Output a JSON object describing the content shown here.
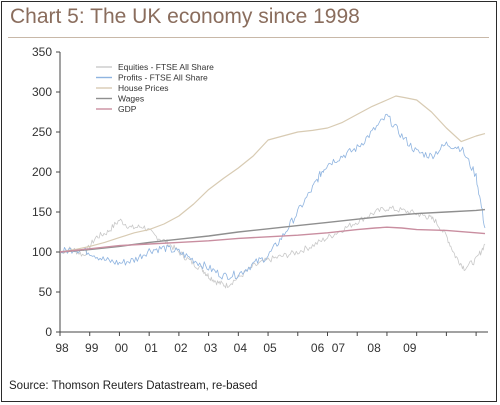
{
  "chart_data": {
    "type": "line",
    "title": "Chart 5: The UK economy since 1998",
    "source": "Source: Thomson Reuters Datastream, re-based",
    "xlabel": "",
    "ylabel": "",
    "ylim": [
      0,
      350
    ],
    "xlim": [
      1998.0,
      2012.4
    ],
    "y_ticks": [
      0,
      50,
      100,
      150,
      200,
      250,
      300,
      350
    ],
    "x_tick_labels": [
      {
        "label": "98",
        "x": 1998.0
      },
      {
        "label": "99",
        "x": 1999.0
      },
      {
        "label": "00",
        "x": 2000.0
      },
      {
        "label": "01",
        "x": 2001.0
      },
      {
        "label": "02",
        "x": 2002.0
      },
      {
        "label": "03",
        "x": 2003.0
      },
      {
        "label": "04",
        "x": 2004.0
      },
      {
        "label": "05",
        "x": 2005.0
      },
      {
        "label": "06",
        "x": 2006.6
      },
      {
        "label": "07",
        "x": 2007.3
      },
      {
        "label": "08",
        "x": 2008.5
      },
      {
        "label": "09",
        "x": 2009.7
      }
    ],
    "legend_position": "top-left",
    "grid": false,
    "series": [
      {
        "name": "Equities - FTSE All Share",
        "color": "#c9c9c9",
        "width": 0.8,
        "noise": 4,
        "x": [
          1998.0,
          1998.4,
          1998.8,
          1999.2,
          1999.6,
          2000.0,
          2000.4,
          2000.8,
          2001.2,
          2001.6,
          2002.0,
          2002.4,
          2002.8,
          2003.0,
          2003.3,
          2003.6,
          2004.0,
          2004.5,
          2005.0,
          2005.5,
          2006.0,
          2006.5,
          2007.0,
          2007.5,
          2008.0,
          2008.5,
          2009.0,
          2009.5,
          2010.0,
          2010.3,
          2010.6,
          2011.0,
          2011.3,
          2011.6,
          2012.0,
          2012.3
        ],
        "y": [
          100,
          104,
          96,
          118,
          125,
          140,
          130,
          132,
          120,
          112,
          100,
          88,
          78,
          70,
          62,
          58,
          68,
          82,
          90,
          95,
          100,
          108,
          118,
          128,
          138,
          148,
          155,
          152,
          148,
          145,
          140,
          120,
          95,
          80,
          90,
          110
        ]
      },
      {
        "name": "Profits - FTSE All Share",
        "color": "#8fb4e0",
        "width": 0.8,
        "noise": 5,
        "x": [
          1998.0,
          1998.5,
          1999.0,
          1999.5,
          2000.0,
          2000.5,
          2001.0,
          2001.5,
          2002.0,
          2002.5,
          2003.0,
          2003.5,
          2004.0,
          2004.5,
          2005.0,
          2005.5,
          2006.0,
          2006.5,
          2006.8,
          2007.0,
          2007.5,
          2008.0,
          2008.5,
          2009.0,
          2009.5,
          2010.0,
          2010.5,
          2011.0,
          2011.5,
          2012.0,
          2012.3
        ],
        "y": [
          100,
          104,
          100,
          90,
          86,
          90,
          102,
          105,
          100,
          90,
          80,
          70,
          72,
          85,
          95,
          120,
          150,
          180,
          200,
          210,
          220,
          230,
          250,
          270,
          245,
          225,
          220,
          235,
          230,
          195,
          130
        ]
      },
      {
        "name": "House Prices",
        "color": "#d8cbb3",
        "width": 1.2,
        "noise": 0,
        "x": [
          1998.0,
          1998.5,
          1999.0,
          1999.5,
          2000.0,
          2000.5,
          2001.0,
          2001.5,
          2002.0,
          2002.5,
          2003.0,
          2003.5,
          2004.0,
          2004.5,
          2005.0,
          2005.5,
          2006.0,
          2006.5,
          2007.0,
          2007.5,
          2008.0,
          2008.5,
          2009.0,
          2009.3,
          2009.6,
          2010.0,
          2010.5,
          2011.0,
          2011.5,
          2012.0,
          2012.3
        ],
        "y": [
          100,
          103,
          107,
          112,
          118,
          124,
          128,
          135,
          145,
          160,
          178,
          192,
          205,
          220,
          240,
          245,
          250,
          252,
          255,
          262,
          272,
          282,
          290,
          295,
          293,
          290,
          275,
          255,
          238,
          245,
          248
        ]
      },
      {
        "name": "Wages",
        "color": "#8f8f8f",
        "width": 1.4,
        "noise": 0,
        "x": [
          1998.0,
          1999.0,
          2000.0,
          2001.0,
          2002.0,
          2003.0,
          2004.0,
          2005.0,
          2006.0,
          2007.0,
          2008.0,
          2009.0,
          2010.0,
          2011.0,
          2012.0,
          2012.3
        ],
        "y": [
          100,
          103,
          107,
          112,
          116,
          120,
          125,
          129,
          133,
          137,
          141,
          145,
          148,
          150,
          152,
          153
        ]
      },
      {
        "name": "GDP",
        "color": "#c98ea0",
        "width": 1.4,
        "noise": 0,
        "x": [
          1998.0,
          1999.0,
          2000.0,
          2001.0,
          2002.0,
          2003.0,
          2004.0,
          2005.0,
          2006.0,
          2007.0,
          2008.0,
          2008.6,
          2009.0,
          2009.5,
          2010.0,
          2011.0,
          2012.0,
          2012.3
        ],
        "y": [
          100,
          104,
          108,
          110,
          112,
          114,
          117,
          119,
          121,
          124,
          128,
          130,
          131,
          130,
          128,
          127,
          124,
          123
        ]
      }
    ]
  }
}
